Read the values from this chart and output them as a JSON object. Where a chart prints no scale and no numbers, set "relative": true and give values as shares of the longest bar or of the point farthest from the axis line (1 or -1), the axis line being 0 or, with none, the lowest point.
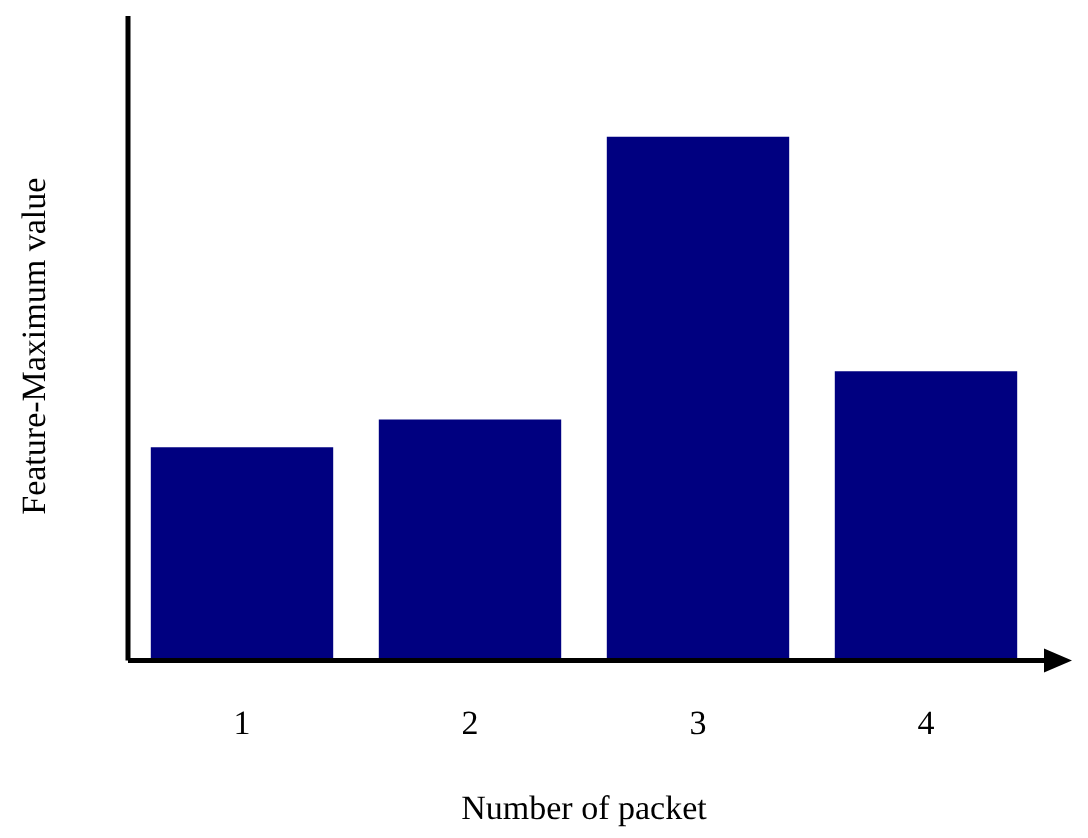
{
  "chart_data": {
    "type": "bar",
    "relative": true,
    "xlabel": "Number of packet",
    "ylabel": "Feature-Maximum value",
    "categories": [
      "1",
      "2",
      "3",
      "4"
    ],
    "values": [
      0.407,
      0.46,
      1,
      0.552
    ],
    "color": "#000080",
    "grid": false,
    "legend": false
  }
}
